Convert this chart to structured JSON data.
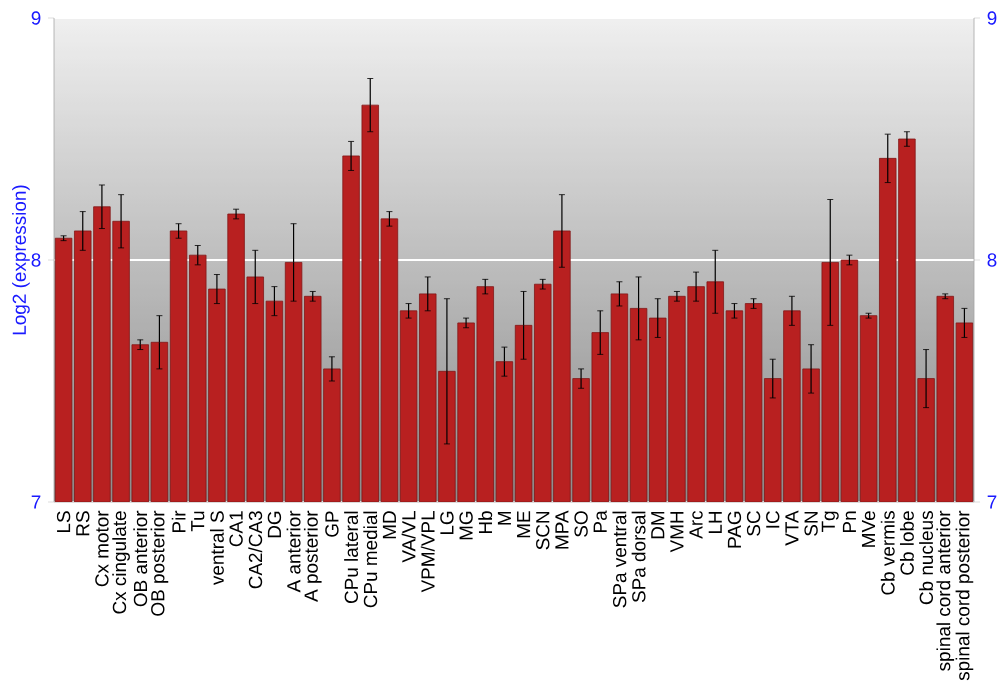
{
  "chart_data": {
    "type": "bar",
    "ylabel": "Log2 (expression)",
    "color": "#b82020",
    "categories": [
      "LS",
      "RS",
      "Cx motor",
      "Cx cingulate",
      "OB anterior",
      "OB posterior",
      "Pir",
      "Tu",
      "ventral S",
      "CA1",
      "CA2/CA3",
      "DG",
      "A anterior",
      "A posterior",
      "GP",
      "CPu lateral",
      "CPu medial",
      "MD",
      "VA/VL",
      "VPM/VPL",
      "LG",
      "MG",
      "Hb",
      "M",
      "ME",
      "SCN",
      "MPA",
      "SO",
      "Pa",
      "SPa ventral",
      "SPa dorsal",
      "DM",
      "VMH",
      "Arc",
      "LH",
      "PAG",
      "SC",
      "IC",
      "VTA",
      "SN",
      "Tg",
      "Pn",
      "MVe",
      "Cb vermis",
      "Cb lobe",
      "Cb nucleus",
      "spinal cord anterior",
      "spinal cord posterior"
    ],
    "values": [
      8.09,
      8.12,
      8.22,
      8.16,
      7.65,
      7.66,
      8.12,
      8.02,
      7.88,
      8.19,
      7.93,
      7.83,
      7.99,
      7.85,
      7.55,
      8.43,
      8.64,
      8.17,
      7.79,
      7.86,
      7.54,
      7.74,
      7.89,
      7.58,
      7.73,
      7.9,
      8.12,
      7.51,
      7.7,
      7.86,
      7.8,
      7.76,
      7.85,
      7.89,
      7.91,
      7.79,
      7.82,
      7.51,
      7.79,
      7.55,
      7.99,
      8.0,
      7.77,
      8.42,
      8.5,
      7.51,
      7.85,
      7.74
    ],
    "errors": [
      0.01,
      0.08,
      0.09,
      0.11,
      0.02,
      0.11,
      0.03,
      0.04,
      0.06,
      0.02,
      0.11,
      0.06,
      0.16,
      0.02,
      0.05,
      0.06,
      0.11,
      0.03,
      0.03,
      0.07,
      0.3,
      0.02,
      0.03,
      0.06,
      0.14,
      0.02,
      0.15,
      0.04,
      0.09,
      0.05,
      0.13,
      0.08,
      0.02,
      0.06,
      0.13,
      0.03,
      0.02,
      0.08,
      0.06,
      0.1,
      0.26,
      0.02,
      0.01,
      0.1,
      0.03,
      0.12,
      0.01,
      0.06
    ],
    "ylim": [
      7,
      9
    ],
    "yticks": [
      7,
      8,
      9
    ],
    "y2lim": [
      7,
      9
    ],
    "y2ticks": [
      7,
      8,
      9
    ],
    "grid": "y"
  }
}
